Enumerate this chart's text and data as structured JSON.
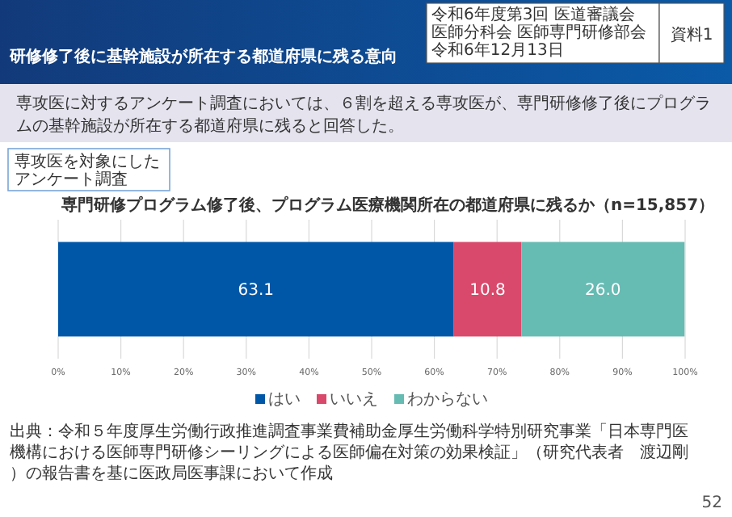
{
  "chart_data": {
    "type": "bar",
    "orientation": "horizontal",
    "stacked": true,
    "title": "専門研修プログラム修了後、プログラム医療機関所在の都道府県に残るか（n=15,857）",
    "categories": [
      null
    ],
    "series": [
      {
        "name": "はい",
        "color": "#0057a8",
        "values": [
          63.1
        ],
        "value_labels": [
          "63.1"
        ]
      },
      {
        "name": "いいえ",
        "color": "#d9496b",
        "values": [
          10.8
        ],
        "value_labels": [
          "10.8"
        ]
      },
      {
        "name": "わからない",
        "color": "#66bbb3",
        "values": [
          26.0
        ],
        "value_labels": [
          "26.0"
        ]
      }
    ],
    "xlim": [
      0,
      100
    ],
    "xticks": [
      {
        "value": 0,
        "label": "0%"
      },
      {
        "value": 10,
        "label": "10%"
      },
      {
        "value": 20,
        "label": "20%"
      },
      {
        "value": 30,
        "label": "30%"
      },
      {
        "value": 40,
        "label": "40%"
      },
      {
        "value": 50,
        "label": "50%"
      },
      {
        "value": 60,
        "label": "60%"
      },
      {
        "value": 70,
        "label": "70%"
      },
      {
        "value": 80,
        "label": "80%"
      },
      {
        "value": 90,
        "label": "90%"
      },
      {
        "value": 100,
        "label": "100%"
      }
    ],
    "grid": "x",
    "legend": "bottom",
    "annotations": [
      "研修修了後に基幹施設が所在する都道府県に残る意向",
      "令和6年度第3回 医道審議会",
      "医師分科会 医師専門研修部会",
      "令和6年12月13日",
      "資料1",
      "専攻医に対するアンケート調査においては、６割を超える専攻医が、専門研修修了後にプログラムの基幹施設が所在する都道府県に残ると回答した。",
      "専攻医を対象にしたアンケート調査",
      "出典：令和５年度厚生労働行政推進調査事業費補助金厚生労働科学特別研究事業「日本専門医機構における医師専門研修シーリングによる医師偏在対策の効果検証」（研究代表者　渡辺剛）の報告書を基に医政局医事課において作成",
      "52"
    ]
  }
}
